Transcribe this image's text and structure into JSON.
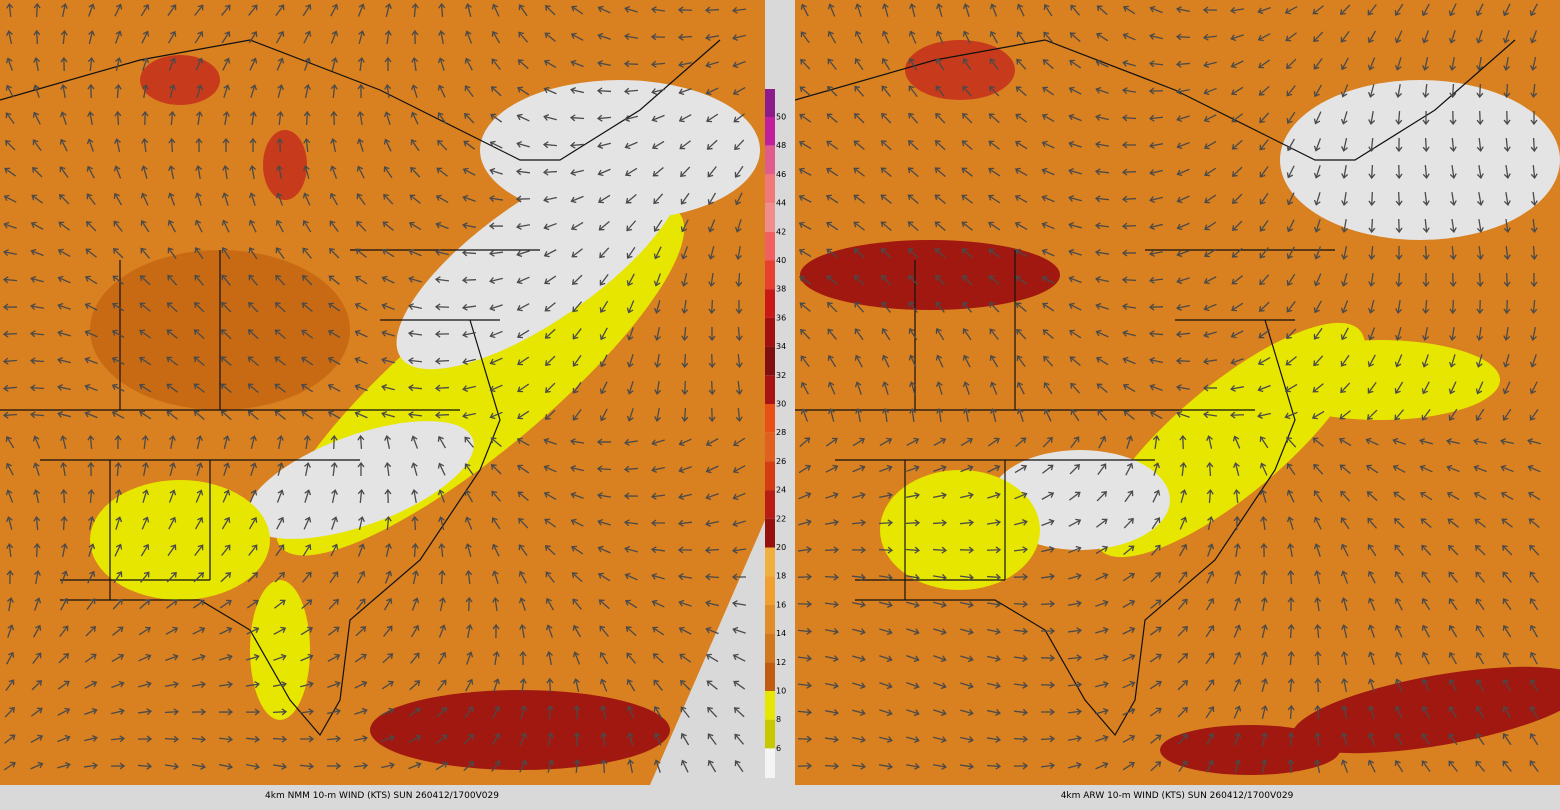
{
  "colorbar": {
    "labels": [
      50,
      48,
      46,
      44,
      42,
      40,
      38,
      36,
      34,
      32,
      30,
      28,
      26,
      24,
      22,
      20,
      18,
      16,
      14,
      12,
      10,
      8,
      6
    ],
    "colors": [
      "#8c1c8c",
      "#c0209c",
      "#e05c8c",
      "#f07878",
      "#f08c8c",
      "#f06060",
      "#e84030",
      "#c81818",
      "#a01010",
      "#801010",
      "#a81414",
      "#e85018",
      "#e06020",
      "#d43c14",
      "#b81c14",
      "#961010",
      "#f0b040",
      "#f0a030",
      "#e08c28",
      "#d07820",
      "#c05c10",
      "#e6e600",
      "#c8c800",
      "#f4f4f4"
    ]
  },
  "panels": [
    {
      "caption": "4km NMM 10-m WIND (KTS) SUN 260412/1700V029"
    },
    {
      "caption": "4km ARW 10-m WIND (KTS) SUN 260412/1700V029"
    }
  ]
}
